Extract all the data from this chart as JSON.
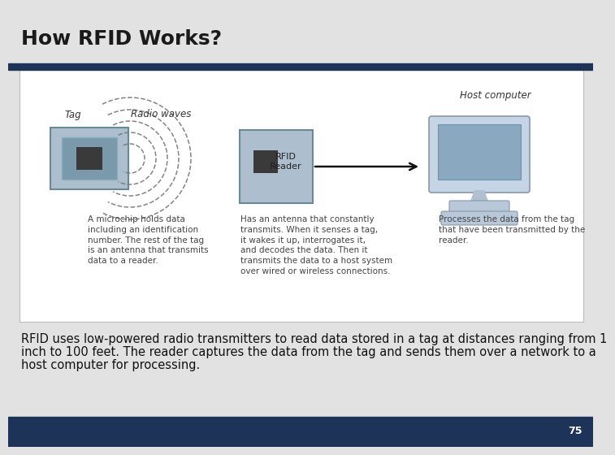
{
  "title": "How RFID Works?",
  "title_fontsize": 18,
  "title_color": "#1a1a1a",
  "bg_color": "#e2e2e2",
  "header_bar_color": "#1e3358",
  "footer_bar_color": "#1e3358",
  "page_number": "75",
  "diagram_bg": "#ffffff",
  "diagram_border": "#bbbbbb",
  "body_text_line1": "RFID uses low-powered radio transmitters to read data stored in a tag at distances ranging from 1",
  "body_text_line2": "inch to 100 feet. The reader captures the data from the tag and sends them over a network to a",
  "body_text_line3": "host computer for processing.",
  "body_text_fontsize": 10.5,
  "body_text_color": "#111111",
  "tag_label": "Tag",
  "radio_label": "Radio waves",
  "rfid_label": "RFID\nReader",
  "host_label": "Host computer",
  "tag_desc": "A microchip holds data\nincluding an identification\nnumber. The rest of the tag\nis an antenna that transmits\ndata to a reader.",
  "rfid_desc": "Has an antenna that constantly\ntransmits. When it senses a tag,\nit wakes it up, interrogates it,\nand decodes the data. Then it\ntransmits the data to a host system\nover wired or wireless connections.",
  "host_desc": "Processes the data from the tag\nthat have been transmitted by the\nreader.",
  "tag_color": "#adbece",
  "tag_inner_color": "#7a9aac",
  "tag_chip_color": "#3a3a3a",
  "rfid_box_color": "#adbece",
  "rfid_chip_color": "#3a3a3a",
  "arrow_color": "#111111",
  "wave_color": "#777777",
  "label_fontsize": 8.5,
  "desc_fontsize": 7.5
}
